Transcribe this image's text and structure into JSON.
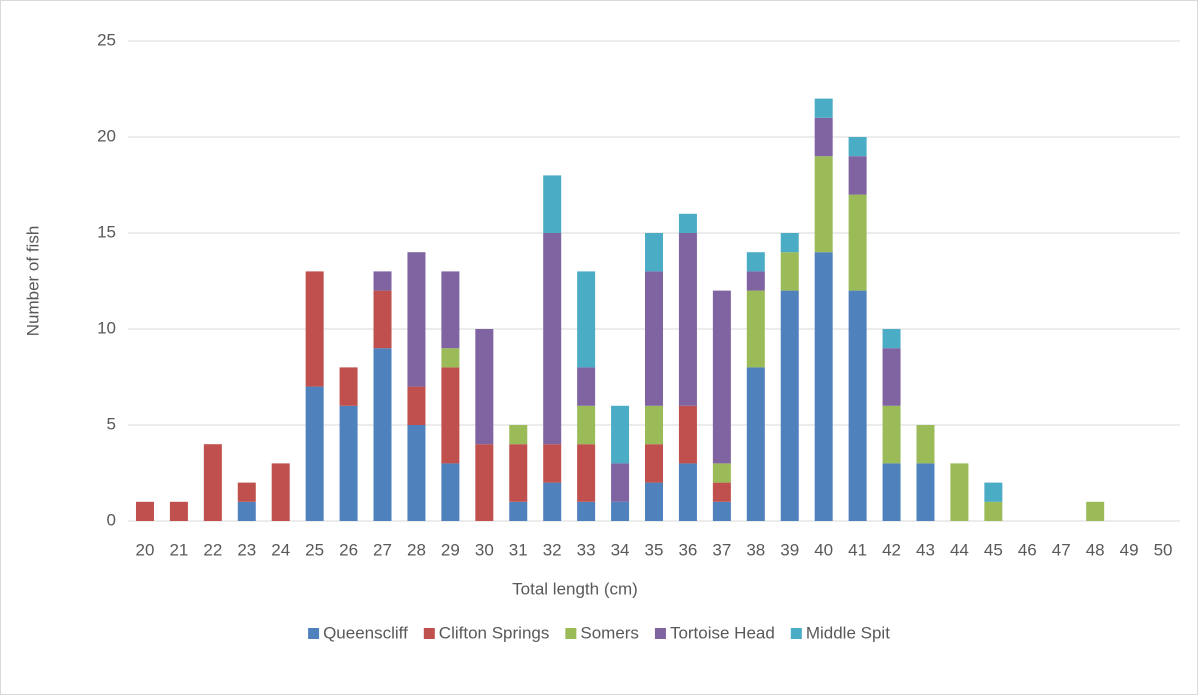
{
  "chart_data": {
    "type": "bar",
    "stacked": true,
    "x_label": "Total length (cm)",
    "y_label": "Number of fish",
    "categories": [
      20,
      21,
      22,
      23,
      24,
      25,
      26,
      27,
      28,
      29,
      30,
      31,
      32,
      33,
      34,
      35,
      36,
      37,
      38,
      39,
      40,
      41,
      42,
      43,
      44,
      45,
      46,
      47,
      48,
      49,
      50
    ],
    "series": [
      {
        "name": "Queenscliff",
        "color": "#4f81bd",
        "values": [
          0,
          0,
          0,
          1,
          0,
          7,
          6,
          9,
          5,
          3,
          0,
          1,
          2,
          1,
          1,
          2,
          3,
          1,
          8,
          12,
          14,
          12,
          3,
          3,
          0,
          0,
          0,
          0,
          0,
          0,
          0
        ]
      },
      {
        "name": "Clifton Springs",
        "color": "#c0504d",
        "values": [
          1,
          1,
          4,
          1,
          3,
          6,
          2,
          3,
          2,
          5,
          4,
          3,
          2,
          3,
          0,
          2,
          3,
          1,
          0,
          0,
          0,
          0,
          0,
          0,
          0,
          0,
          0,
          0,
          0,
          0,
          0
        ]
      },
      {
        "name": "Somers",
        "color": "#9bbb59",
        "values": [
          0,
          0,
          0,
          0,
          0,
          0,
          0,
          0,
          0,
          1,
          0,
          1,
          0,
          2,
          0,
          2,
          0,
          1,
          4,
          2,
          5,
          5,
          3,
          2,
          3,
          1,
          0,
          0,
          1,
          0,
          0
        ]
      },
      {
        "name": "Tortoise Head",
        "color": "#8064a2",
        "values": [
          0,
          0,
          0,
          0,
          0,
          0,
          0,
          1,
          7,
          4,
          6,
          0,
          11,
          2,
          2,
          7,
          9,
          9,
          1,
          0,
          2,
          2,
          3,
          0,
          0,
          0,
          0,
          0,
          0,
          0,
          0
        ]
      },
      {
        "name": "Middle Spit",
        "color": "#4bacc6",
        "values": [
          0,
          0,
          0,
          0,
          0,
          0,
          0,
          0,
          0,
          0,
          0,
          0,
          3,
          5,
          3,
          2,
          1,
          0,
          1,
          1,
          1,
          1,
          1,
          0,
          0,
          1,
          0,
          0,
          0,
          0,
          0
        ]
      }
    ],
    "ylim": [
      0,
      25
    ],
    "yticks": [
      0,
      5,
      10,
      15,
      20,
      25
    ],
    "grid": true,
    "legend": "bottom"
  }
}
